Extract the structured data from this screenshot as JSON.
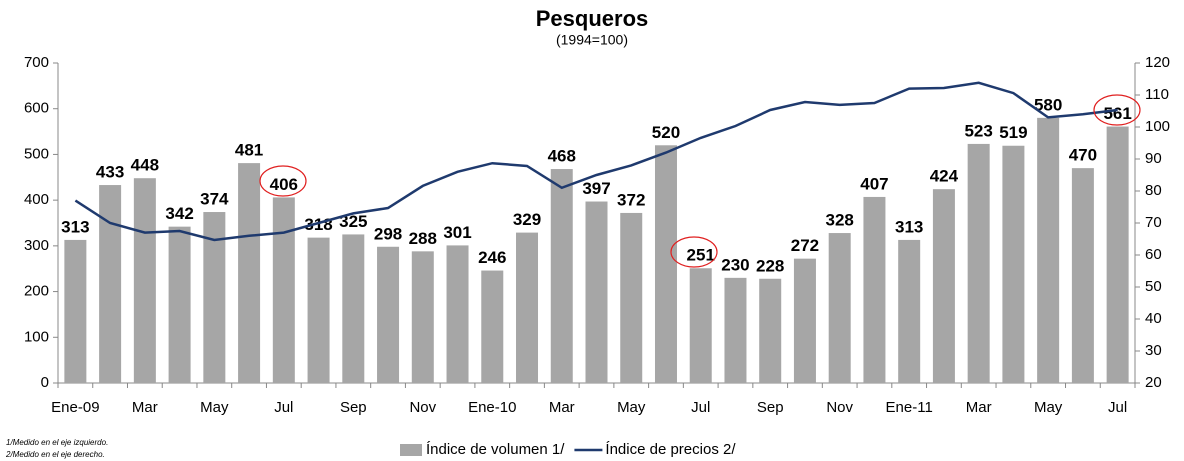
{
  "chart_data": {
    "type": "bar",
    "title": "Pesqueros",
    "subtitle": "(1994=100)",
    "categories": [
      "Ene-09",
      null,
      "Mar",
      null,
      "May",
      null,
      "Jul",
      null,
      "Sep",
      null,
      "Nov",
      null,
      "Ene-10",
      null,
      "Mar",
      null,
      "May",
      null,
      "Jul",
      null,
      "Sep",
      null,
      "Nov",
      null,
      "Ene-11",
      null,
      "Mar",
      null,
      "May",
      null,
      "Jul"
    ],
    "series": [
      {
        "name": "Índice de volumen 1/",
        "type": "bar",
        "color": "#a6a6a6",
        "values": [
          313,
          433,
          448,
          342,
          374,
          481,
          406,
          318,
          325,
          298,
          288,
          301,
          246,
          329,
          468,
          397,
          372,
          520,
          251,
          230,
          228,
          272,
          328,
          407,
          313,
          424,
          523,
          519,
          580,
          470,
          561
        ]
      },
      {
        "name": "Índice de precios 2/",
        "type": "line",
        "axis": "y2",
        "color": "#1f3a6e",
        "values": [
          77,
          70,
          67,
          67.5,
          64.7,
          66,
          67,
          70,
          73,
          74.7,
          81.6,
          86,
          88.7,
          87.8,
          81,
          85,
          88,
          92,
          96.6,
          100.3,
          105.3,
          107.8,
          106.9,
          107.5,
          112,
          112.2,
          113.8,
          110.6,
          103,
          104,
          105.3
        ]
      }
    ],
    "ylim": [
      0,
      700
    ],
    "yticks": [
      0,
      100,
      200,
      300,
      400,
      500,
      600,
      700
    ],
    "y2lim": [
      20,
      120
    ],
    "y2ticks": [
      20,
      30,
      40,
      50,
      60,
      70,
      80,
      90,
      100,
      110,
      120
    ],
    "footnotes": [
      "1/Medido en el eje izquierdo.",
      "2/Medido en el eje derecho."
    ]
  }
}
